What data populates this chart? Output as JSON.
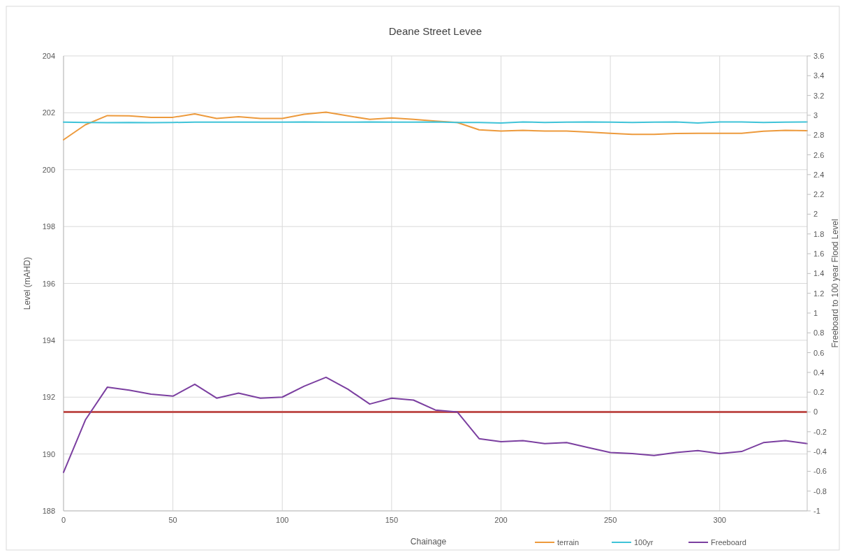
{
  "chart_data": {
    "type": "line",
    "title": "Deane Street Levee",
    "xlabel": "Chainage",
    "ylabel": "Level (mAHD)",
    "y2label": "Freeboard to 100 year Flood Level",
    "x": [
      0,
      10,
      20,
      30,
      40,
      50,
      60,
      70,
      80,
      90,
      100,
      110,
      120,
      130,
      140,
      150,
      160,
      170,
      180,
      190,
      200,
      210,
      220,
      230,
      240,
      250,
      260,
      270,
      280,
      290,
      300,
      310,
      320,
      330,
      340
    ],
    "xlim": [
      0,
      340
    ],
    "xticks": [
      0,
      50,
      100,
      150,
      200,
      250,
      300
    ],
    "ylim": [
      188,
      204
    ],
    "yticks": [
      188,
      190,
      192,
      194,
      196,
      198,
      200,
      202,
      204
    ],
    "y2lim": [
      -1,
      3.6
    ],
    "y2ticks": [
      -1,
      -0.8,
      -0.6,
      -0.4,
      -0.2,
      0,
      0.2,
      0.4,
      0.6,
      0.8,
      1,
      1.2,
      1.4,
      1.6,
      1.8,
      2,
      2.2,
      2.4,
      2.6,
      2.8,
      3,
      3.2,
      3.4,
      3.6
    ],
    "series": [
      {
        "name": "terrain",
        "color": "#ed9a3c",
        "values": [
          201.05,
          201.58,
          201.9,
          201.89,
          201.84,
          201.84,
          201.96,
          201.8,
          201.86,
          201.8,
          201.8,
          201.95,
          202.02,
          201.89,
          201.77,
          201.82,
          201.77,
          201.71,
          201.66,
          201.4,
          201.36,
          201.38,
          201.36,
          201.36,
          201.32,
          201.28,
          201.24,
          201.24,
          201.27,
          201.28,
          201.28,
          201.28,
          201.35,
          201.38,
          201.37
        ]
      },
      {
        "name": "100yr",
        "color": "#3fc3d8",
        "values": [
          201.67,
          201.66,
          201.65,
          201.66,
          201.65,
          201.66,
          201.67,
          201.67,
          201.67,
          201.67,
          201.67,
          201.68,
          201.67,
          201.67,
          201.68,
          201.67,
          201.67,
          201.68,
          201.66,
          201.66,
          201.64,
          201.68,
          201.66,
          201.67,
          201.68,
          201.67,
          201.66,
          201.67,
          201.68,
          201.64,
          201.68,
          201.68,
          201.66,
          201.67,
          201.68
        ]
      },
      {
        "name": "Freeboard",
        "color": "#7b3fa0",
        "axis": "y2",
        "values": [
          -0.61,
          -0.08,
          0.25,
          0.22,
          0.18,
          0.16,
          0.28,
          0.14,
          0.19,
          0.14,
          0.15,
          0.26,
          0.35,
          0.23,
          0.08,
          0.14,
          0.12,
          0.02,
          0,
          -0.27,
          -0.3,
          -0.29,
          -0.32,
          -0.31,
          -0.36,
          -0.41,
          -0.42,
          -0.44,
          -0.41,
          -0.39,
          -0.42,
          -0.4,
          -0.31,
          -0.29,
          -0.32
        ]
      }
    ],
    "ref_lines": [
      {
        "axis": "y2",
        "value": 0,
        "color": "#c0504d"
      }
    ],
    "grid": true,
    "legend": "bottom right",
    "line_style": "solid",
    "marker": "none"
  }
}
